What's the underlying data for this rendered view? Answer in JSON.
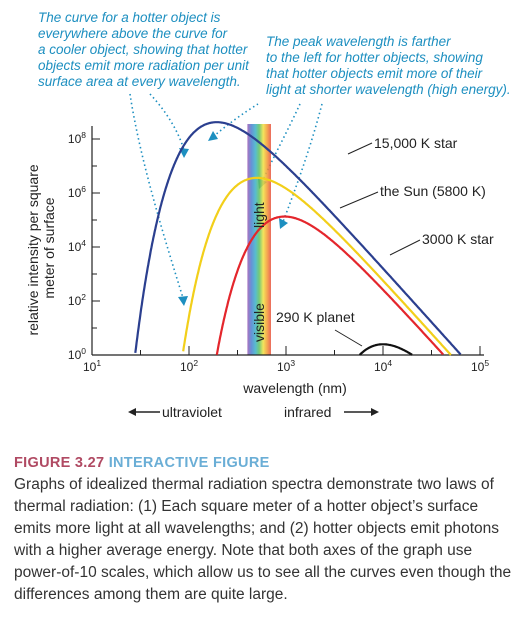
{
  "annotations": {
    "left": [
      "The curve for a hotter object is",
      "everywhere above the curve for",
      "a cooler object, showing that hotter",
      "objects emit more radiation per unit",
      "surface area at every wavelength."
    ],
    "right": [
      "The peak wavelength is farther",
      "to the left for hotter objects, showing",
      "that hotter objects emit more of their",
      "light at shorter wavelength (high energy)."
    ]
  },
  "bands": {
    "light": "light",
    "visible": "visible"
  },
  "arrows": {
    "ultraviolet": "ultraviolet",
    "infrared": "infrared"
  },
  "caption": {
    "figure_label": "FIGURE 3.27",
    "interactive_label": "INTERACTIVE FIGURE",
    "text": "Graphs of idealized thermal radiation spectra demonstrate two laws of thermal radiation: (1) Each square meter of a hotter object’s surface emits more light at all wavelengths; and (2) hotter objects emit photons with a higher average energy. Note that both axes of the graph use power-of-10 scales, which allow us to see all the curves even though the differences among them are quite large."
  },
  "colors": {
    "annotation": "#1d8fc0",
    "figure_label": "#b04a63",
    "interactive_label": "#6aaed6"
  },
  "chart_data": {
    "type": "line",
    "xlabel": "wavelength (nm)",
    "ylabel": "relative intensity per square meter of surface",
    "x_scale": "log",
    "y_scale": "log",
    "xlim": [
      10,
      100000
    ],
    "ylim": [
      1,
      1000000000
    ],
    "x_ticks": [
      {
        "base": "10",
        "exp": "1",
        "value": 10
      },
      {
        "base": "10",
        "exp": "2",
        "value": 100
      },
      {
        "base": "10",
        "exp": "3",
        "value": 1000
      },
      {
        "base": "10",
        "exp": "4",
        "value": 10000
      },
      {
        "base": "10",
        "exp": "5",
        "value": 100000
      }
    ],
    "y_ticks": [
      {
        "base": "10",
        "exp": "0",
        "value": 1
      },
      {
        "base": "10",
        "exp": "2",
        "value": 100
      },
      {
        "base": "10",
        "exp": "4",
        "value": 10000
      },
      {
        "base": "10",
        "exp": "6",
        "value": 1000000
      },
      {
        "base": "10",
        "exp": "8",
        "value": 100000000
      }
    ],
    "visible_band_nm": [
      400,
      700
    ],
    "series": [
      {
        "name": "15,000 K star",
        "color": "#2b3f8f",
        "temperature_k": 15000
      },
      {
        "name": "the Sun (5800 K)",
        "color": "#f2cf1a",
        "temperature_k": 5800
      },
      {
        "name": "3000 K star",
        "color": "#e4262c",
        "temperature_k": 3000
      },
      {
        "name": "290 K planet",
        "color": "#111111",
        "temperature_k": 290
      }
    ]
  }
}
